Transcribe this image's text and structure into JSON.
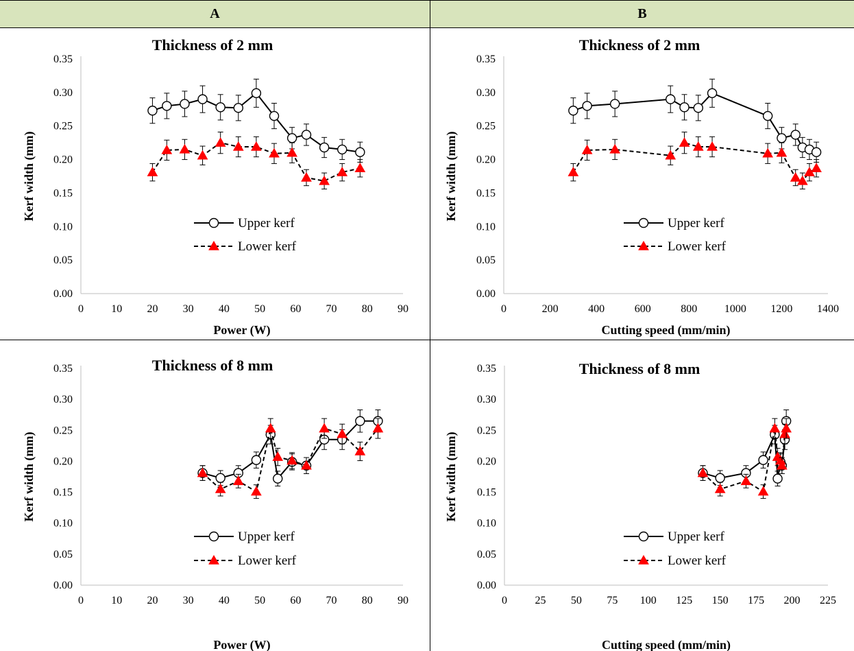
{
  "headers": {
    "a": "A",
    "b": "B"
  },
  "chart_data": [
    {
      "type": "line",
      "title": "Thickness of 2 mm",
      "xlabel": "Power (W)",
      "ylabel": "Kerf width (mm)",
      "xlim": [
        0,
        90
      ],
      "ylim": [
        0,
        0.35
      ],
      "xticks": [
        0,
        10,
        20,
        30,
        40,
        50,
        60,
        70,
        80,
        90
      ],
      "yticks": [
        0.0,
        0.05,
        0.1,
        0.15,
        0.2,
        0.25,
        0.3,
        0.35
      ],
      "x_tick_labels": [
        "0",
        "10",
        "20",
        "30",
        "40",
        "50",
        "60",
        "70",
        "80",
        "90"
      ],
      "y_tick_labels": [
        "0.00",
        "0.05",
        "0.10",
        "0.15",
        "0.20",
        "0.25",
        "0.30",
        "0.35"
      ],
      "legend_position": "lower-right",
      "series": [
        {
          "name": "Upper kerf",
          "marker": "circle",
          "line": "solid",
          "color": "#000000",
          "x": [
            20,
            24,
            29,
            34,
            39,
            44,
            49,
            54,
            59,
            63,
            68,
            73,
            78
          ],
          "y": [
            0.273,
            0.28,
            0.283,
            0.29,
            0.278,
            0.277,
            0.299,
            0.265,
            0.232,
            0.237,
            0.218,
            0.215,
            0.211
          ],
          "err": [
            0.019,
            0.019,
            0.019,
            0.02,
            0.019,
            0.019,
            0.021,
            0.019,
            0.016,
            0.016,
            0.015,
            0.015,
            0.015
          ]
        },
        {
          "name": "Lower kerf",
          "marker": "triangle",
          "line": "dashed",
          "color": "#ff0000",
          "x": [
            20,
            24,
            29,
            34,
            39,
            44,
            49,
            54,
            59,
            63,
            68,
            73,
            78
          ],
          "y": [
            0.181,
            0.214,
            0.215,
            0.206,
            0.225,
            0.219,
            0.219,
            0.209,
            0.21,
            0.173,
            0.168,
            0.181,
            0.187
          ],
          "err": [
            0.013,
            0.015,
            0.015,
            0.014,
            0.016,
            0.015,
            0.015,
            0.015,
            0.015,
            0.012,
            0.012,
            0.013,
            0.013
          ]
        }
      ]
    },
    {
      "type": "line",
      "title": "Thickness of  2 mm",
      "xlabel": "Cutting speed (mm/min)",
      "ylabel": "Kerf width (mm)",
      "xlim": [
        0,
        1400
      ],
      "ylim": [
        0,
        0.35
      ],
      "xticks": [
        0,
        200,
        400,
        600,
        800,
        1000,
        1200,
        1400
      ],
      "yticks": [
        0.0,
        0.05,
        0.1,
        0.15,
        0.2,
        0.25,
        0.3,
        0.35
      ],
      "x_tick_labels": [
        "0",
        "200",
        "400",
        "600",
        "800",
        "1000",
        "1200",
        "1400"
      ],
      "y_tick_labels": [
        "0.00",
        "0.05",
        "0.10",
        "0.15",
        "0.20",
        "0.25",
        "0.30",
        "0.35"
      ],
      "legend_position": "lower-right",
      "series": [
        {
          "name": "Upper kerf",
          "marker": "circle",
          "line": "solid",
          "color": "#000000",
          "x": [
            300,
            360,
            480,
            720,
            780,
            840,
            900,
            1140,
            1200,
            1260,
            1290,
            1320,
            1350
          ],
          "y": [
            0.273,
            0.28,
            0.283,
            0.29,
            0.278,
            0.277,
            0.299,
            0.265,
            0.232,
            0.237,
            0.218,
            0.215,
            0.211
          ],
          "err": [
            0.019,
            0.019,
            0.019,
            0.02,
            0.019,
            0.019,
            0.021,
            0.019,
            0.016,
            0.016,
            0.015,
            0.015,
            0.015
          ]
        },
        {
          "name": "Lower kerf",
          "marker": "triangle",
          "line": "dashed",
          "color": "#ff0000",
          "x": [
            300,
            360,
            480,
            720,
            780,
            840,
            900,
            1140,
            1200,
            1260,
            1290,
            1320,
            1350
          ],
          "y": [
            0.181,
            0.214,
            0.215,
            0.206,
            0.225,
            0.219,
            0.219,
            0.209,
            0.21,
            0.173,
            0.168,
            0.181,
            0.187
          ],
          "err": [
            0.013,
            0.015,
            0.015,
            0.014,
            0.016,
            0.015,
            0.015,
            0.015,
            0.015,
            0.012,
            0.012,
            0.013,
            0.013
          ]
        }
      ]
    },
    {
      "type": "line",
      "title": "Thickness of 8 mm",
      "xlabel": "Power (W)",
      "ylabel": "Kerf width (mm)",
      "xlim": [
        0,
        90
      ],
      "ylim": [
        0,
        0.35
      ],
      "xticks": [
        0,
        10,
        20,
        30,
        40,
        50,
        60,
        70,
        80,
        90
      ],
      "yticks": [
        0.0,
        0.05,
        0.1,
        0.15,
        0.2,
        0.25,
        0.3,
        0.35
      ],
      "x_tick_labels": [
        "0",
        "10",
        "20",
        "30",
        "40",
        "50",
        "60",
        "70",
        "80",
        "90"
      ],
      "y_tick_labels": [
        "0.00",
        "0.05",
        "0.10",
        "0.15",
        "0.20",
        "0.25",
        "0.30",
        "0.35"
      ],
      "legend_position": "lower-right",
      "series": [
        {
          "name": "Upper kerf",
          "marker": "circle",
          "line": "solid",
          "color": "#000000",
          "x": [
            34,
            39,
            44,
            49,
            53,
            55,
            59,
            63,
            68,
            73,
            78,
            83
          ],
          "y": [
            0.181,
            0.173,
            0.181,
            0.202,
            0.243,
            0.172,
            0.199,
            0.193,
            0.235,
            0.235,
            0.265,
            0.265
          ],
          "err": [
            0.012,
            0.012,
            0.012,
            0.013,
            0.015,
            0.012,
            0.013,
            0.013,
            0.016,
            0.016,
            0.018,
            0.018
          ]
        },
        {
          "name": "Lower kerf",
          "marker": "triangle",
          "line": "dashed",
          "color": "#ff0000",
          "x": [
            34,
            39,
            44,
            49,
            53,
            55,
            59,
            63,
            68,
            73,
            78,
            83
          ],
          "y": [
            0.181,
            0.155,
            0.168,
            0.151,
            0.253,
            0.207,
            0.201,
            0.193,
            0.253,
            0.244,
            0.216,
            0.253
          ],
          "err": [
            0.012,
            0.011,
            0.011,
            0.011,
            0.016,
            0.014,
            0.013,
            0.013,
            0.016,
            0.016,
            0.015,
            0.016
          ]
        }
      ]
    },
    {
      "type": "line",
      "title": "Thickness of 8 mm",
      "xlabel": "Cutting speed (mm/min)",
      "ylabel": "Kerf width (mm)",
      "xlim": [
        0,
        225
      ],
      "ylim": [
        0,
        0.35
      ],
      "xticks": [
        0,
        25,
        50,
        75,
        100,
        125,
        150,
        175,
        200,
        225
      ],
      "yticks": [
        0.0,
        0.05,
        0.1,
        0.15,
        0.2,
        0.25,
        0.3,
        0.35
      ],
      "x_tick_labels": [
        "0",
        "25",
        "50",
        "75",
        "100",
        "125",
        "150",
        "175",
        "200",
        "225"
      ],
      "y_tick_labels": [
        "0.00",
        "0.05",
        "0.10",
        "0.15",
        "0.20",
        "0.25",
        "0.30",
        "0.35"
      ],
      "legend_position": "lower-right",
      "series": [
        {
          "name": "Upper kerf",
          "marker": "circle",
          "line": "solid",
          "color": "#000000",
          "x": [
            138,
            150,
            168,
            180,
            188,
            190,
            192,
            193,
            195,
            196
          ],
          "y": [
            0.181,
            0.173,
            0.181,
            0.202,
            0.243,
            0.172,
            0.199,
            0.193,
            0.235,
            0.265
          ],
          "err": [
            0.012,
            0.012,
            0.012,
            0.013,
            0.015,
            0.012,
            0.013,
            0.013,
            0.016,
            0.018
          ]
        },
        {
          "name": "Lower kerf",
          "marker": "triangle",
          "line": "dashed",
          "color": "#ff0000",
          "x": [
            138,
            150,
            168,
            180,
            188,
            190,
            192,
            193,
            195,
            196
          ],
          "y": [
            0.181,
            0.155,
            0.168,
            0.151,
            0.253,
            0.207,
            0.201,
            0.193,
            0.244,
            0.253
          ],
          "err": [
            0.012,
            0.011,
            0.011,
            0.011,
            0.016,
            0.014,
            0.013,
            0.013,
            0.016,
            0.016
          ]
        }
      ]
    }
  ]
}
